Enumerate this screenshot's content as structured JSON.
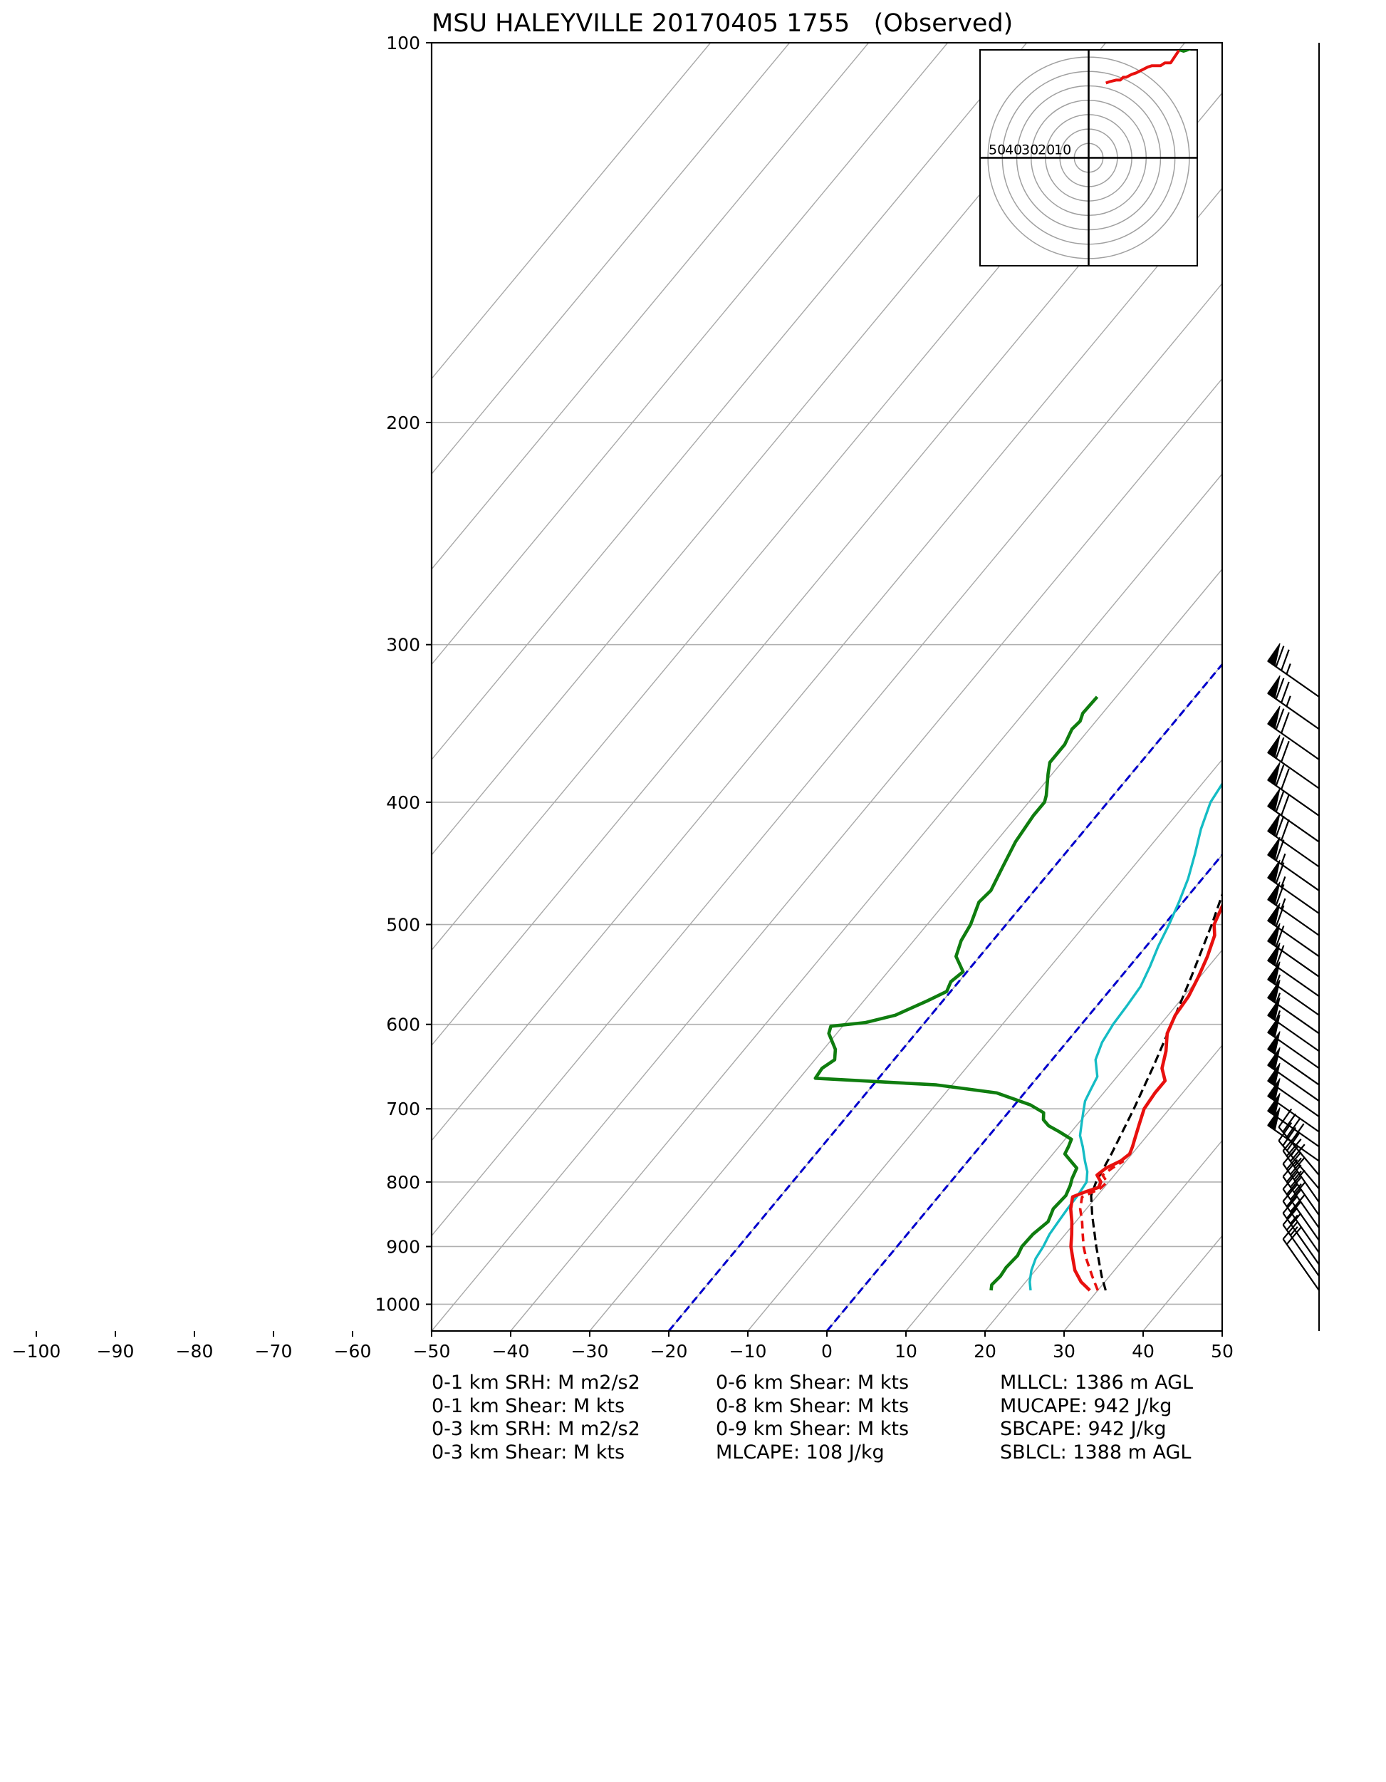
{
  "chart_data": {
    "type": "line",
    "title": "MSU HALEYVILLE 20170405 1755   (Observed)",
    "xlabel": "",
    "ylabel": "",
    "x_scale": "skew-T (temperature, °C)",
    "y_scale": "log (pressure, hPa), inverted",
    "xlim": [
      -50,
      50
    ],
    "ylim": [
      1050,
      100
    ],
    "x_ticks": [
      "−100",
      "−90",
      "−80",
      "−70",
      "−60",
      "−50",
      "−40",
      "−30",
      "−20",
      "−10",
      "0",
      "10",
      "20",
      "30",
      "40",
      "50"
    ],
    "x_tick_values": [
      -100,
      -90,
      -80,
      -70,
      -60,
      -50,
      -40,
      -30,
      -20,
      -10,
      0,
      10,
      20,
      30,
      40,
      50
    ],
    "y_ticks": [
      "100",
      "200",
      "300",
      "400",
      "500",
      "600",
      "700",
      "800",
      "900",
      "1000"
    ],
    "y_tick_values": [
      100,
      200,
      300,
      400,
      500,
      600,
      700,
      800,
      900,
      1000
    ],
    "grid": true,
    "colors": {
      "temperature": "#e8100e",
      "dewpoint": "#0f7d0f",
      "wetbulb": "#14bcc4",
      "parcel": "#000000",
      "isotherm_dashed": "#0000cc",
      "skew_lines": "#a8a8a8",
      "grid": "#b0b0b0"
    },
    "series": [
      {
        "key": "temperature",
        "style": "solid",
        "points": [
          [
            975,
            29.0
          ],
          [
            960,
            27.0
          ],
          [
            940,
            25.0
          ],
          [
            920,
            23.5
          ],
          [
            900,
            22.0
          ],
          [
            880,
            20.8
          ],
          [
            860,
            19.5
          ],
          [
            840,
            18.0
          ],
          [
            822,
            17.0
          ],
          [
            815,
            18.0
          ],
          [
            808,
            19.3
          ],
          [
            800,
            19.0
          ],
          [
            790,
            17.8
          ],
          [
            780,
            18.2
          ],
          [
            770,
            19.3
          ],
          [
            760,
            19.7
          ],
          [
            750,
            19.3
          ],
          [
            740,
            18.8
          ],
          [
            720,
            17.8
          ],
          [
            700,
            16.8
          ],
          [
            680,
            16.5
          ],
          [
            665,
            16.5
          ],
          [
            650,
            14.8
          ],
          [
            630,
            13.5
          ],
          [
            610,
            11.8
          ],
          [
            590,
            10.9
          ],
          [
            570,
            10.6
          ],
          [
            550,
            9.8
          ],
          [
            530,
            8.8
          ],
          [
            510,
            7.5
          ],
          [
            500,
            6.3
          ],
          [
            480,
            5.2
          ],
          [
            460,
            3.5
          ],
          [
            440,
            1.5
          ],
          [
            420,
            -0.3
          ],
          [
            400,
            -1.6
          ],
          [
            380,
            -2.5
          ],
          [
            365,
            -4.2
          ],
          [
            350,
            -5.3
          ],
          [
            340,
            -5.8
          ],
          [
            330,
            -6.8
          ]
        ]
      },
      {
        "key": "temperature-virtual",
        "style": "dashed",
        "points": [
          [
            975,
            30.0
          ],
          [
            950,
            27.8
          ],
          [
            920,
            25.2
          ],
          [
            900,
            23.6
          ],
          [
            880,
            22.2
          ],
          [
            860,
            20.8
          ],
          [
            840,
            19.2
          ],
          [
            822,
            18.2
          ],
          [
            810,
            19.6
          ],
          [
            800,
            19.8
          ],
          [
            790,
            18.5
          ],
          [
            780,
            19.0
          ],
          [
            770,
            19.7
          ]
        ]
      },
      {
        "key": "dewpoint",
        "style": "solid",
        "points": [
          [
            975,
            16.5
          ],
          [
            965,
            16.0
          ],
          [
            950,
            16.2
          ],
          [
            935,
            16.0
          ],
          [
            915,
            16.2
          ],
          [
            900,
            15.8
          ],
          [
            880,
            15.9
          ],
          [
            860,
            16.5
          ],
          [
            840,
            15.8
          ],
          [
            820,
            16.0
          ],
          [
            805,
            15.5
          ],
          [
            795,
            15.0
          ],
          [
            780,
            14.5
          ],
          [
            770,
            13.0
          ],
          [
            760,
            11.5
          ],
          [
            750,
            11.2
          ],
          [
            740,
            10.8
          ],
          [
            730,
            8.5
          ],
          [
            722,
            6.5
          ],
          [
            714,
            5.2
          ],
          [
            705,
            4.5
          ],
          [
            695,
            2.0
          ],
          [
            680,
            -3.5
          ],
          [
            670,
            -12.0
          ],
          [
            662,
            -28.0
          ],
          [
            650,
            -28.2
          ],
          [
            640,
            -27.5
          ],
          [
            628,
            -28.5
          ],
          [
            610,
            -31.0
          ],
          [
            602,
            -31.5
          ],
          [
            598,
            -27.5
          ],
          [
            590,
            -24.5
          ],
          [
            575,
            -22.0
          ],
          [
            565,
            -20.5
          ],
          [
            555,
            -21.0
          ],
          [
            545,
            -20.5
          ],
          [
            530,
            -23.0
          ],
          [
            515,
            -24.0
          ],
          [
            500,
            -24.5
          ],
          [
            480,
            -25.8
          ],
          [
            470,
            -25.5
          ],
          [
            450,
            -26.5
          ],
          [
            430,
            -27.5
          ],
          [
            410,
            -28.0
          ],
          [
            400,
            -28.0
          ],
          [
            395,
            -28.5
          ],
          [
            380,
            -30.5
          ],
          [
            372,
            -31.5
          ],
          [
            360,
            -31.5
          ],
          [
            350,
            -32.2
          ],
          [
            345,
            -32.0
          ],
          [
            340,
            -32.5
          ],
          [
            330,
            -32.4
          ]
        ]
      },
      {
        "key": "wetbulb",
        "style": "solid",
        "points": [
          [
            975,
            21.5
          ],
          [
            960,
            20.5
          ],
          [
            940,
            19.5
          ],
          [
            920,
            18.8
          ],
          [
            900,
            18.5
          ],
          [
            880,
            18.0
          ],
          [
            860,
            17.8
          ],
          [
            840,
            17.6
          ],
          [
            820,
            17.5
          ],
          [
            800,
            17.2
          ],
          [
            785,
            16.2
          ],
          [
            770,
            14.8
          ],
          [
            750,
            13.0
          ],
          [
            735,
            11.5
          ],
          [
            720,
            10.5
          ],
          [
            705,
            9.5
          ],
          [
            690,
            8.5
          ],
          [
            675,
            8.0
          ],
          [
            660,
            7.5
          ],
          [
            640,
            5.5
          ],
          [
            620,
            4.5
          ],
          [
            600,
            4.0
          ],
          [
            580,
            3.8
          ],
          [
            560,
            3.5
          ],
          [
            540,
            2.6
          ],
          [
            520,
            1.5
          ],
          [
            500,
            0.6
          ],
          [
            480,
            -0.5
          ],
          [
            460,
            -1.8
          ],
          [
            440,
            -3.5
          ],
          [
            420,
            -5.4
          ],
          [
            400,
            -7.0
          ],
          [
            385,
            -7.5
          ],
          [
            370,
            -8.3
          ],
          [
            355,
            -9.0
          ],
          [
            345,
            -10.0
          ],
          [
            330,
            -11.3
          ]
        ]
      },
      {
        "key": "parcel",
        "style": "dashed",
        "points": [
          [
            975,
            31.0
          ],
          [
            950,
            29.0
          ],
          [
            900,
            25.2
          ],
          [
            850,
            21.4
          ],
          [
            820,
            19.2
          ],
          [
            800,
            18.4
          ],
          [
            760,
            17.4
          ],
          [
            700,
            15.5
          ],
          [
            650,
            13.6
          ],
          [
            600,
            11.4
          ],
          [
            550,
            8.9
          ],
          [
            500,
            6.0
          ],
          [
            450,
            2.5
          ],
          [
            400,
            -1.8
          ],
          [
            360,
            -5.8
          ],
          [
            330,
            -9.2
          ]
        ]
      }
    ],
    "dashed_isotherms": [
      {
        "temperature": -20,
        "from_pressure": 1050,
        "to_pressure": 100
      },
      {
        "temperature": 0,
        "from_pressure": 1050,
        "to_pressure": 100
      }
    ],
    "wind_barbs": {
      "pressures": [
        330,
        350,
        370,
        390,
        410,
        430,
        450,
        470,
        490,
        510,
        530,
        550,
        570,
        590,
        610,
        630,
        650,
        670,
        690,
        710,
        730,
        750,
        770,
        790,
        810,
        830,
        850,
        870,
        890,
        910,
        930,
        950,
        975
      ],
      "speeds_kt": [
        75,
        75,
        70,
        70,
        70,
        70,
        70,
        65,
        65,
        65,
        60,
        60,
        60,
        55,
        55,
        55,
        50,
        50,
        50,
        50,
        50,
        50,
        50,
        40,
        35,
        35,
        35,
        35,
        30,
        30,
        25,
        25,
        20
      ],
      "directions_deg": [
        235,
        235,
        235,
        235,
        235,
        235,
        235,
        235,
        235,
        235,
        235,
        235,
        235,
        235,
        235,
        235,
        235,
        235,
        235,
        235,
        235,
        235,
        235,
        220,
        220,
        215,
        215,
        215,
        215,
        215,
        215,
        215,
        215
      ]
    },
    "hodograph": {
      "range_labels": [
        "50",
        "40",
        "30",
        "20",
        "10"
      ],
      "rings_kt": [
        10,
        20,
        30,
        40,
        50,
        60,
        70
      ],
      "max_kt": 75,
      "red_trace": [
        [
          12,
          52
        ],
        [
          15,
          53
        ],
        [
          19,
          54
        ],
        [
          22,
          54
        ],
        [
          24,
          56
        ],
        [
          26,
          56
        ],
        [
          28,
          57
        ],
        [
          30,
          58
        ],
        [
          33,
          59
        ],
        [
          37,
          61
        ],
        [
          41,
          63
        ],
        [
          44,
          64
        ],
        [
          47,
          64
        ],
        [
          50,
          64
        ],
        [
          53,
          66
        ],
        [
          57,
          66
        ],
        [
          59,
          69
        ],
        [
          61,
          72
        ],
        [
          63,
          75
        ]
      ],
      "green_trace": [
        [
          63,
          75
        ],
        [
          66,
          74
        ],
        [
          69,
          75
        ],
        [
          71,
          76
        ],
        [
          74,
          78
        ],
        [
          76,
          79
        ],
        [
          78,
          80
        ],
        [
          80,
          80
        ],
        [
          83,
          80
        ],
        [
          85,
          80
        ],
        [
          88,
          81
        ]
      ]
    }
  },
  "stats": {
    "col1": [
      "0-1 km SRH: M m2/s2",
      "0-1 km Shear: M kts",
      "0-3 km SRH: M m2/s2",
      "0-3 km Shear: M kts"
    ],
    "col2": [
      "0-6 km Shear: M kts",
      "0-8 km Shear: M kts",
      "0-9 km Shear: M kts",
      "MLCAPE: 108 J/kg"
    ],
    "col3": [
      "MLLCL: 1386 m AGL",
      "MUCAPE: 942 J/kg",
      "SBCAPE: 942 J/kg",
      "SBLCL: 1388 m AGL"
    ]
  }
}
